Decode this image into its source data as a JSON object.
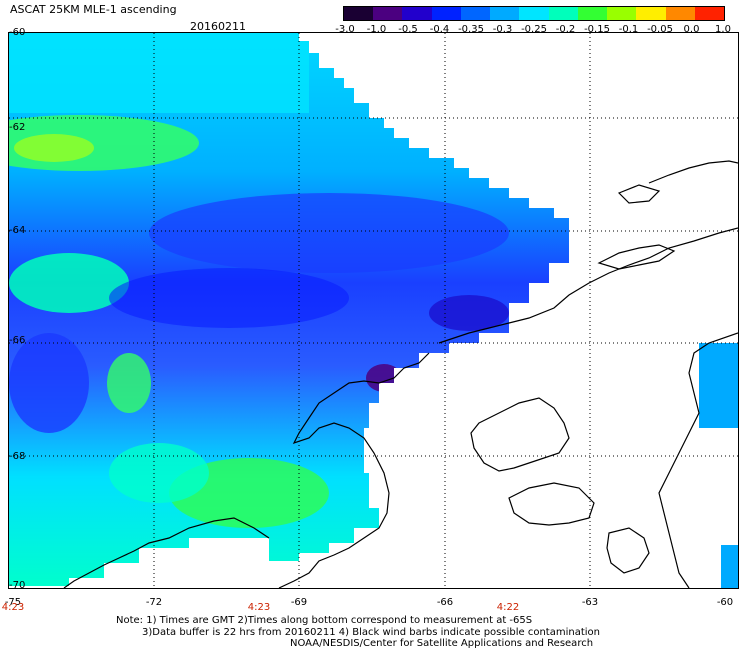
{
  "header": {
    "title": "ASCAT 25KM MLE-1 ascending",
    "date": "20160211"
  },
  "colorbar": {
    "labels": [
      "-3.0",
      "-1.0",
      "-0.5",
      "-0.4",
      "-0.35",
      "-0.3",
      "-0.25",
      "-0.2",
      "-0.15",
      "-0.1",
      "-0.05",
      "0.0",
      "1.0"
    ],
    "colors": [
      "#1a0033",
      "#4b0080",
      "#2200cc",
      "#0022ff",
      "#0066ff",
      "#00aaff",
      "#00e5ff",
      "#00ffbb",
      "#33ff33",
      "#99ff00",
      "#ffee00",
      "#ff8800",
      "#ff2200"
    ]
  },
  "axes": {
    "lat_labels": [
      "-60",
      "-62",
      "-64",
      "-66",
      "-68",
      "-70"
    ],
    "lon_labels": [
      "-75",
      "-72",
      "-69",
      "-66",
      "-63",
      "-60"
    ],
    "time_labels": [
      "4:23",
      "4:23",
      "4:22"
    ]
  },
  "notes": {
    "line1": "Note: 1) Times are GMT 2)Times along bottom correspond to measurement at -65S",
    "line2": "3)Data buffer is 22 hrs from 20160211 4) Black wind barbs indicate possible contamination",
    "line3": "NOAA/NESDIS/Center for Satellite Applications and Research"
  }
}
